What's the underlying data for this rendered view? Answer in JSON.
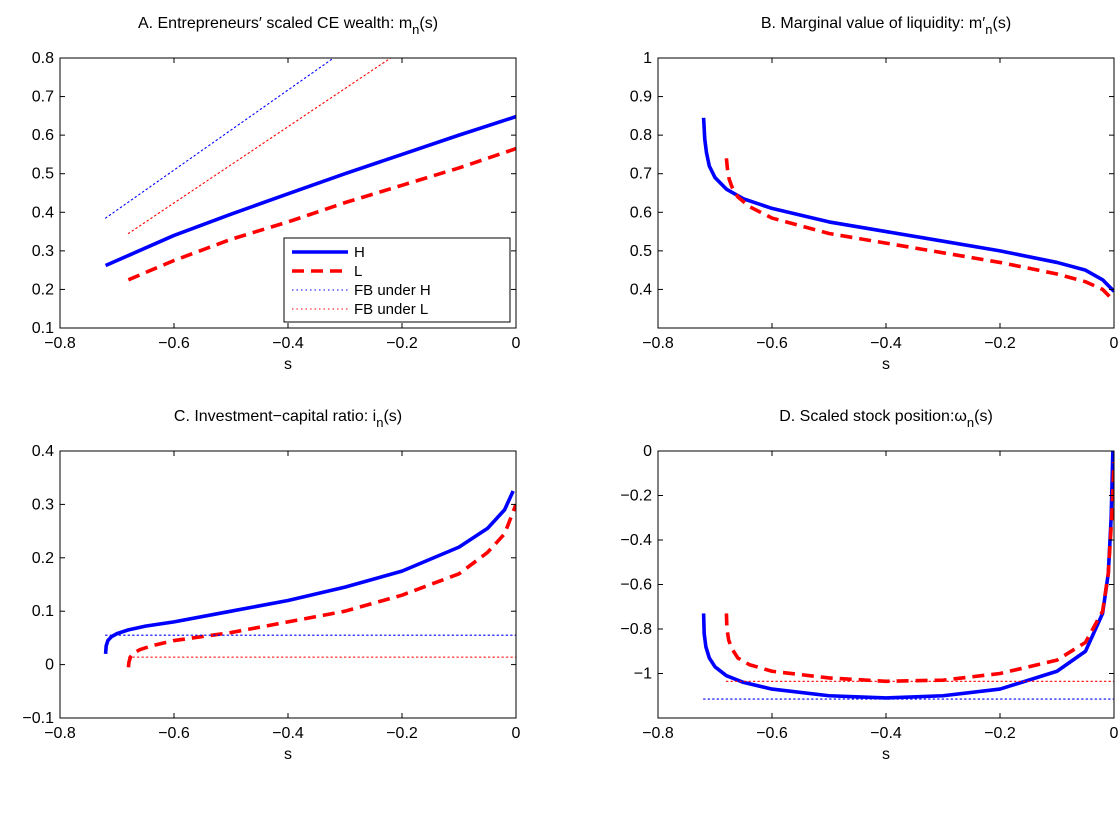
{
  "chart_data": [
    {
      "id": "A",
      "type": "line",
      "title": "A. Entrepreneurs′ scaled CE wealth: m(s)",
      "title_main": "A. Entrepreneurs′ scaled CE wealth: m",
      "title_sub": "n",
      "title_tail": "(s)",
      "xlabel": "s",
      "ylabel": "",
      "xlim": [
        -0.8,
        0
      ],
      "ylim": [
        0.1,
        0.8
      ],
      "xticks": [
        -0.8,
        -0.6,
        -0.4,
        -0.2,
        0
      ],
      "xtick_labels": [
        "−0.8",
        "−0.6",
        "−0.4",
        "−0.2",
        "0"
      ],
      "yticks": [
        0.1,
        0.2,
        0.3,
        0.4,
        0.5,
        0.6,
        0.7,
        0.8
      ],
      "ytick_labels": [
        "0.1",
        "0.2",
        "0.3",
        "0.4",
        "0.5",
        "0.6",
        "0.7",
        "0.8"
      ],
      "legend": {
        "placement": "lower-right",
        "entries": [
          "H",
          "L",
          "FB under H",
          "FB under L"
        ]
      },
      "series": [
        {
          "name": "H",
          "color": "#0000ff",
          "style": "solid",
          "x": [
            -0.72,
            -0.6,
            -0.5,
            -0.4,
            -0.3,
            -0.2,
            -0.1,
            0.0
          ],
          "y": [
            0.262,
            0.34,
            0.395,
            0.448,
            0.5,
            0.55,
            0.6,
            0.648
          ]
        },
        {
          "name": "L",
          "color": "#ff0000",
          "style": "dashed",
          "x": [
            -0.68,
            -0.6,
            -0.5,
            -0.4,
            -0.3,
            -0.2,
            -0.1,
            0.0
          ],
          "y": [
            0.225,
            0.275,
            0.33,
            0.375,
            0.425,
            0.47,
            0.515,
            0.565
          ]
        },
        {
          "name": "FB under H",
          "color": "#0000ff",
          "style": "dotted",
          "x": [
            -0.72,
            -0.32
          ],
          "y": [
            0.385,
            0.8
          ]
        },
        {
          "name": "FB under L",
          "color": "#ff0000",
          "style": "dotted",
          "x": [
            -0.68,
            -0.22
          ],
          "y": [
            0.345,
            0.8
          ]
        }
      ]
    },
    {
      "id": "B",
      "type": "line",
      "title": "B. Marginal value of liquidity: m′(s)",
      "title_main": "B. Marginal value of liquidity: m′",
      "title_sub": "n",
      "title_tail": "(s)",
      "xlabel": "s",
      "ylabel": "",
      "xlim": [
        -0.8,
        0
      ],
      "ylim": [
        0.3,
        1.0
      ],
      "xticks": [
        -0.8,
        -0.6,
        -0.4,
        -0.2,
        0
      ],
      "xtick_labels": [
        "−0.8",
        "−0.6",
        "−0.4",
        "−0.2",
        "0"
      ],
      "yticks": [
        0.4,
        0.5,
        0.6,
        0.7,
        0.8,
        0.9,
        1.0
      ],
      "ytick_labels": [
        "0.4",
        "0.5",
        "0.6",
        "0.7",
        "0.8",
        "0.9",
        "1"
      ],
      "series": [
        {
          "name": "H",
          "color": "#0000ff",
          "style": "solid",
          "x": [
            -0.72,
            -0.718,
            -0.715,
            -0.71,
            -0.7,
            -0.68,
            -0.65,
            -0.6,
            -0.5,
            -0.4,
            -0.3,
            -0.2,
            -0.1,
            -0.05,
            -0.02,
            0.0
          ],
          "y": [
            0.845,
            0.79,
            0.755,
            0.72,
            0.69,
            0.66,
            0.635,
            0.61,
            0.575,
            0.55,
            0.525,
            0.5,
            0.47,
            0.45,
            0.425,
            0.395
          ]
        },
        {
          "name": "L",
          "color": "#ff0000",
          "style": "dashed",
          "x": [
            -0.68,
            -0.678,
            -0.675,
            -0.67,
            -0.66,
            -0.64,
            -0.6,
            -0.5,
            -0.4,
            -0.3,
            -0.2,
            -0.1,
            -0.05,
            -0.02,
            0.0
          ],
          "y": [
            0.74,
            0.71,
            0.685,
            0.665,
            0.64,
            0.615,
            0.585,
            0.545,
            0.52,
            0.495,
            0.47,
            0.44,
            0.42,
            0.4,
            0.37
          ]
        },
        {
          "name": "FB under H",
          "color": "#0000ff",
          "style": "dotted",
          "x": [
            -0.72,
            0.0
          ],
          "y": [
            1.0,
            1.0
          ]
        },
        {
          "name": "FB under L",
          "color": "#ff0000",
          "style": "dotted",
          "x": [
            -0.68,
            0.0
          ],
          "y": [
            1.0,
            1.0
          ]
        }
      ]
    },
    {
      "id": "C",
      "type": "line",
      "title": "C. Investment−capital ratio: i(s)",
      "title_main": "C. Investment−capital ratio: i",
      "title_sub": "n",
      "title_tail": "(s)",
      "xlabel": "s",
      "ylabel": "",
      "xlim": [
        -0.8,
        0
      ],
      "ylim": [
        -0.1,
        0.4
      ],
      "xticks": [
        -0.8,
        -0.6,
        -0.4,
        -0.2,
        0
      ],
      "xtick_labels": [
        "−0.8",
        "−0.6",
        "−0.4",
        "−0.2",
        "0"
      ],
      "yticks": [
        -0.1,
        0,
        0.1,
        0.2,
        0.3,
        0.4
      ],
      "ytick_labels": [
        "−0.1",
        "0",
        "0.1",
        "0.2",
        "0.3",
        "0.4"
      ],
      "series": [
        {
          "name": "H",
          "color": "#0000ff",
          "style": "solid",
          "x": [
            -0.72,
            -0.719,
            -0.716,
            -0.71,
            -0.7,
            -0.68,
            -0.65,
            -0.6,
            -0.5,
            -0.4,
            -0.3,
            -0.2,
            -0.1,
            -0.05,
            -0.02,
            -0.005
          ],
          "y": [
            0.02,
            0.035,
            0.045,
            0.052,
            0.058,
            0.065,
            0.072,
            0.08,
            0.1,
            0.12,
            0.145,
            0.175,
            0.22,
            0.255,
            0.29,
            0.325
          ]
        },
        {
          "name": "L",
          "color": "#ff0000",
          "style": "dashed",
          "x": [
            -0.68,
            -0.679,
            -0.676,
            -0.67,
            -0.66,
            -0.64,
            -0.6,
            -0.5,
            -0.4,
            -0.3,
            -0.2,
            -0.1,
            -0.05,
            -0.02,
            0.0
          ],
          "y": [
            -0.005,
            0.005,
            0.015,
            0.022,
            0.028,
            0.035,
            0.045,
            0.06,
            0.08,
            0.1,
            0.13,
            0.17,
            0.21,
            0.245,
            0.3
          ]
        },
        {
          "name": "FB under H",
          "color": "#0000ff",
          "style": "dotted",
          "x": [
            -0.72,
            0.0
          ],
          "y": [
            0.055,
            0.055
          ]
        },
        {
          "name": "FB under L",
          "color": "#ff0000",
          "style": "dotted",
          "x": [
            -0.68,
            0.0
          ],
          "y": [
            0.014,
            0.014
          ]
        }
      ]
    },
    {
      "id": "D",
      "type": "line",
      "title": "D. Scaled stock position: ω(s)",
      "title_main": "D. Scaled stock position:ω",
      "title_sub": "n",
      "title_tail": "(s)",
      "xlabel": "s",
      "ylabel": "",
      "xlim": [
        -0.8,
        0
      ],
      "ylim": [
        -1.2,
        0
      ],
      "xticks": [
        -0.8,
        -0.6,
        -0.4,
        -0.2,
        0
      ],
      "xtick_labels": [
        "−0.8",
        "−0.6",
        "−0.4",
        "−0.2",
        "0"
      ],
      "yticks": [
        -1.0,
        -0.8,
        -0.6,
        -0.4,
        -0.2,
        0
      ],
      "ytick_labels": [
        "−1",
        "−0.8",
        "−0.6",
        "−0.4",
        "−0.2",
        "0"
      ],
      "series": [
        {
          "name": "H",
          "color": "#0000ff",
          "style": "solid",
          "x": [
            -0.72,
            -0.719,
            -0.716,
            -0.71,
            -0.7,
            -0.68,
            -0.65,
            -0.6,
            -0.5,
            -0.4,
            -0.3,
            -0.2,
            -0.1,
            -0.05,
            -0.02,
            -0.01,
            -0.005,
            -0.002
          ],
          "y": [
            -0.73,
            -0.82,
            -0.88,
            -0.93,
            -0.97,
            -1.01,
            -1.04,
            -1.07,
            -1.1,
            -1.11,
            -1.1,
            -1.07,
            -0.99,
            -0.9,
            -0.73,
            -0.55,
            -0.3,
            0.0
          ]
        },
        {
          "name": "L",
          "color": "#ff0000",
          "style": "dashed",
          "x": [
            -0.68,
            -0.679,
            -0.676,
            -0.67,
            -0.66,
            -0.64,
            -0.6,
            -0.5,
            -0.4,
            -0.3,
            -0.2,
            -0.1,
            -0.05,
            -0.02,
            -0.01,
            -0.004,
            0.0
          ],
          "y": [
            -0.73,
            -0.8,
            -0.85,
            -0.89,
            -0.93,
            -0.96,
            -0.99,
            -1.02,
            -1.035,
            -1.03,
            -1.0,
            -0.94,
            -0.86,
            -0.72,
            -0.55,
            -0.3,
            -0.05
          ]
        },
        {
          "name": "FB under H",
          "color": "#0000ff",
          "style": "dotted",
          "x": [
            -0.72,
            0.0
          ],
          "y": [
            -1.115,
            -1.115
          ]
        },
        {
          "name": "FB under L",
          "color": "#ff0000",
          "style": "dotted",
          "x": [
            -0.68,
            0.0
          ],
          "y": [
            -1.035,
            -1.035
          ]
        }
      ]
    }
  ]
}
